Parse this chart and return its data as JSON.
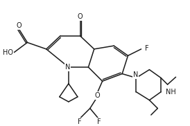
{
  "bg_color": "#ffffff",
  "line_color": "#1a1a1a",
  "line_width": 1.1,
  "font_size": 7.0,
  "fig_width": 2.74,
  "fig_height": 1.82,
  "dpi": 100,
  "xlim": [
    0,
    11
  ],
  "ylim": [
    0,
    7.5
  ]
}
